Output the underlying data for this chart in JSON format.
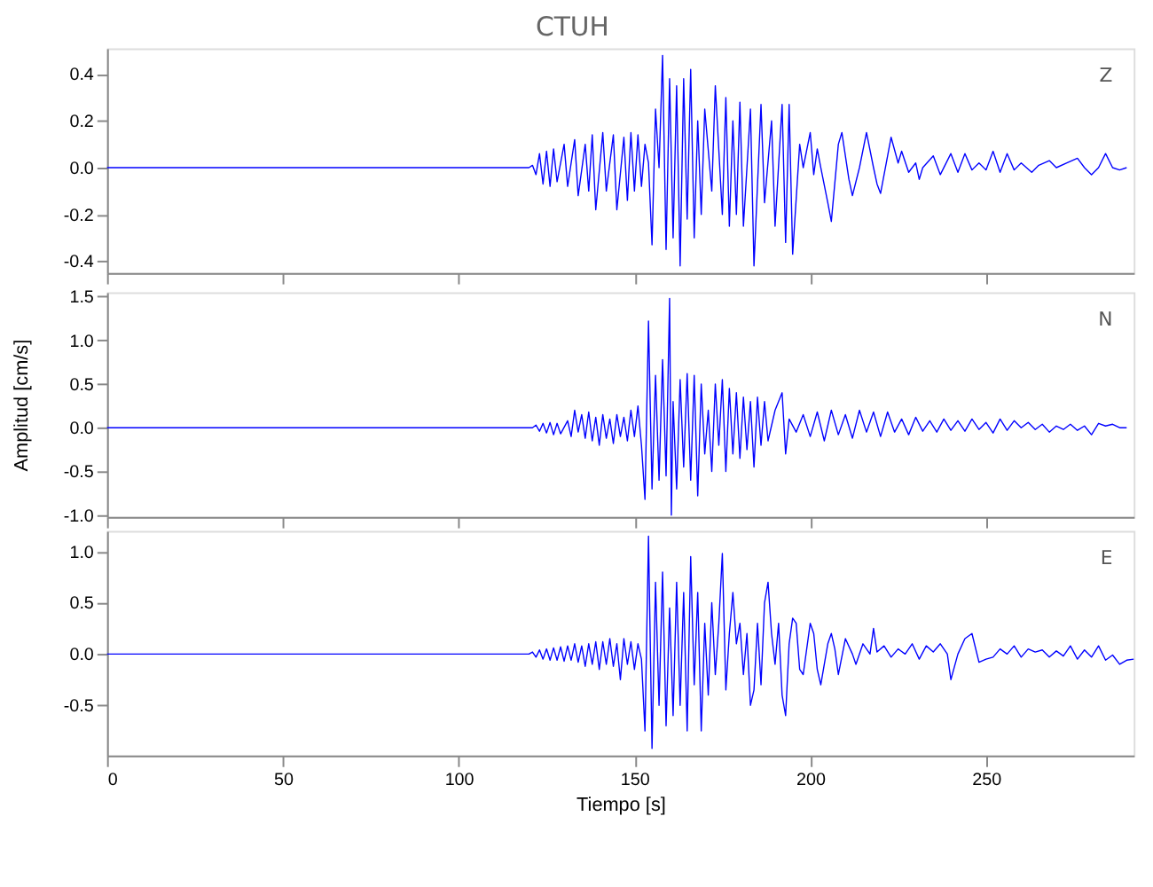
{
  "chart_data": [
    {
      "type": "line",
      "title": "CTUH",
      "annotations": [
        "Z"
      ],
      "xlim": [
        0,
        292
      ],
      "xticks": [
        0,
        50,
        100,
        150,
        200,
        250
      ],
      "ylim": [
        -0.45,
        0.51
      ],
      "yticks": [
        {
          "value": -0.4,
          "label": "-0.4"
        },
        {
          "value": -0.2,
          "label": "-0.2"
        },
        {
          "value": 0,
          "label": "0.0"
        },
        {
          "value": 0.2,
          "label": "0.2"
        },
        {
          "value": 0.4,
          "label": "0.4"
        }
      ],
      "tick_labels": "y",
      "x": [
        0,
        120,
        121,
        122,
        123,
        124,
        125,
        126,
        127,
        128,
        130,
        131,
        133,
        134,
        136,
        137,
        138,
        139,
        141,
        142,
        144,
        145,
        147,
        148,
        149,
        150,
        151,
        152,
        153,
        154,
        155,
        156,
        157,
        158,
        159,
        160,
        161,
        162,
        163,
        164,
        165,
        166,
        167,
        168,
        169,
        170,
        172,
        173,
        175,
        176,
        177,
        178,
        179,
        180,
        181,
        183,
        184,
        186,
        187,
        189,
        190,
        192,
        193,
        194,
        195,
        197,
        198,
        200,
        201,
        202,
        203,
        205,
        206,
        208,
        209,
        211,
        212,
        214,
        216,
        218,
        219,
        220,
        222,
        223,
        225,
        226,
        228,
        230,
        231,
        232,
        235,
        237,
        240,
        242,
        244,
        246,
        248,
        250,
        252,
        254,
        256,
        258,
        260,
        263,
        265,
        268,
        270,
        273,
        276,
        278,
        280,
        282,
        284,
        286,
        288,
        290
      ],
      "series": [
        {
          "color": "#0000ff",
          "values": [
            0,
            0,
            0.01,
            -0.03,
            0.06,
            -0.07,
            0.07,
            -0.08,
            0.08,
            -0.06,
            0.1,
            -0.08,
            0.12,
            -0.12,
            0.1,
            -0.1,
            0.14,
            -0.18,
            0.15,
            -0.1,
            0.14,
            -0.18,
            0.13,
            -0.14,
            0.15,
            -0.1,
            0.14,
            -0.08,
            0.1,
            0.02,
            -0.33,
            0.25,
            0.0,
            0.48,
            -0.35,
            0.38,
            -0.3,
            0.35,
            -0.42,
            0.38,
            -0.22,
            0.42,
            -0.3,
            0.2,
            -0.2,
            0.25,
            -0.1,
            0.35,
            -0.2,
            0.3,
            -0.25,
            0.2,
            -0.2,
            0.28,
            -0.25,
            0.25,
            -0.42,
            0.27,
            -0.15,
            0.2,
            -0.25,
            0.27,
            -0.32,
            0.27,
            -0.37,
            0.1,
            0.0,
            0.15,
            -0.03,
            0.08,
            0.0,
            -0.15,
            -0.23,
            0.1,
            0.15,
            -0.05,
            -0.12,
            0.0,
            0.15,
            0.0,
            -0.07,
            -0.11,
            0.05,
            0.13,
            0.02,
            0.07,
            -0.02,
            0.02,
            -0.05,
            0.0,
            0.05,
            -0.03,
            0.06,
            -0.02,
            0.06,
            -0.01,
            0.02,
            -0.01,
            0.07,
            -0.02,
            0.06,
            -0.01,
            0.02,
            -0.02,
            0.01,
            0.03,
            0.0,
            0.02,
            0.04,
            0.0,
            -0.03,
            0.0,
            0.06,
            0.0,
            -0.01,
            0.0
          ]
        }
      ]
    },
    {
      "type": "line",
      "ylabel": "Amplitud [cm/s]",
      "annotations": [
        "N"
      ],
      "xlim": [
        0,
        292
      ],
      "xticks": [
        0,
        50,
        100,
        150,
        200,
        250
      ],
      "ylim": [
        -1.02,
        1.55
      ],
      "yticks": [
        {
          "value": -1,
          "label": "-1.0"
        },
        {
          "value": -0.5,
          "label": "-0.5"
        },
        {
          "value": 0,
          "label": "0.0"
        },
        {
          "value": 0.5,
          "label": "0.5"
        },
        {
          "value": 1,
          "label": "1.0"
        },
        {
          "value": 1.5,
          "label": "1.5"
        }
      ],
      "tick_labels": "y",
      "x": [
        0,
        121,
        122,
        123,
        124,
        125,
        126,
        127,
        128,
        129,
        131,
        132,
        133,
        134,
        135,
        136,
        137,
        138,
        139,
        140,
        141,
        142,
        143,
        144,
        145,
        146,
        147,
        148,
        149,
        150,
        151,
        152,
        153,
        154,
        155,
        156,
        157,
        158,
        159,
        160,
        160.5,
        161,
        162,
        163,
        164,
        165,
        166,
        167,
        168,
        169,
        170,
        171,
        172,
        173,
        174,
        175,
        176,
        177,
        178,
        179,
        180,
        181,
        182,
        183,
        184,
        185,
        186,
        187,
        188,
        190,
        192,
        193,
        194,
        196,
        198,
        200,
        202,
        204,
        206,
        208,
        210,
        212,
        214,
        216,
        218,
        220,
        222,
        224,
        226,
        228,
        230,
        232,
        234,
        236,
        238,
        240,
        242,
        244,
        246,
        248,
        250,
        252,
        254,
        256,
        258,
        260,
        262,
        264,
        266,
        268,
        270,
        272,
        274,
        276,
        278,
        280,
        282,
        284,
        286,
        288,
        290
      ],
      "series": [
        {
          "color": "#0000ff",
          "values": [
            0,
            0,
            0.03,
            -0.04,
            0.05,
            -0.06,
            0.06,
            -0.08,
            0.05,
            -0.07,
            0.08,
            -0.1,
            0.2,
            -0.05,
            0.15,
            -0.12,
            0.18,
            -0.15,
            0.12,
            -0.2,
            0.15,
            -0.12,
            0.1,
            -0.18,
            0.15,
            -0.1,
            0.12,
            -0.15,
            0.2,
            -0.1,
            0.25,
            -0.2,
            -0.82,
            1.22,
            -0.7,
            0.6,
            -0.6,
            0.78,
            -0.55,
            1.48,
            -1.0,
            0.3,
            -0.7,
            0.55,
            -0.45,
            0.62,
            -0.6,
            0.6,
            -0.78,
            0.5,
            -0.3,
            0.2,
            -0.5,
            0.5,
            -0.2,
            0.55,
            -0.5,
            0.45,
            -0.3,
            0.4,
            -0.35,
            0.35,
            -0.25,
            0.3,
            -0.45,
            0.35,
            -0.2,
            0.3,
            -0.15,
            0.2,
            0.4,
            -0.3,
            0.1,
            -0.05,
            0.15,
            -0.1,
            0.18,
            -0.15,
            0.2,
            -0.08,
            0.15,
            -0.12,
            0.2,
            -0.05,
            0.18,
            -0.1,
            0.18,
            -0.05,
            0.1,
            -0.08,
            0.12,
            -0.04,
            0.08,
            -0.05,
            0.1,
            -0.03,
            0.08,
            -0.04,
            0.1,
            -0.02,
            0.06,
            -0.06,
            0.1,
            -0.03,
            0.08,
            0.0,
            0.06,
            -0.02,
            0.04,
            -0.05,
            0.02,
            -0.02,
            0.04,
            -0.03,
            0.02,
            -0.08,
            0.05,
            0.02,
            0.04,
            0.0,
            0.0
          ]
        }
      ]
    },
    {
      "type": "line",
      "xlabel": "Tiempo [s]",
      "annotations": [
        "E"
      ],
      "xlim": [
        0,
        292
      ],
      "xticks": [
        0,
        50,
        100,
        150,
        200,
        250
      ],
      "ylim": [
        -0.99,
        1.2
      ],
      "yticks": [
        {
          "value": -0.5,
          "label": "-0.5"
        },
        {
          "value": 0,
          "label": "0.0"
        },
        {
          "value": 0.5,
          "label": "0.5"
        },
        {
          "value": 1,
          "label": "1.0"
        }
      ],
      "x": [
        0,
        120,
        121,
        122,
        123,
        124,
        125,
        126,
        127,
        128,
        129,
        130,
        131,
        132,
        133,
        134,
        135,
        136,
        137,
        138,
        139,
        140,
        141,
        142,
        143,
        144,
        145,
        146,
        147,
        148,
        149,
        150,
        151,
        152,
        153,
        154,
        155,
        156,
        157,
        158,
        159,
        160,
        161,
        162,
        163,
        164,
        165,
        166,
        167,
        168,
        169,
        170,
        171,
        172,
        173,
        174,
        175,
        176,
        177,
        178,
        179,
        180,
        181,
        182,
        183,
        184,
        185,
        186,
        187,
        188,
        189,
        190,
        191,
        192,
        193,
        194,
        195,
        196,
        197,
        198,
        200,
        201,
        202,
        203,
        205,
        206,
        207,
        208,
        210,
        212,
        213,
        215,
        217,
        218,
        219,
        221,
        223,
        225,
        227,
        229,
        231,
        233,
        235,
        237,
        239,
        240,
        242,
        244,
        246,
        248,
        250,
        252,
        254,
        256,
        258,
        260,
        262,
        264,
        266,
        268,
        270,
        272,
        274,
        276,
        278,
        280,
        282,
        284,
        286,
        288,
        290,
        292
      ],
      "series": [
        {
          "color": "#0000ff",
          "values": [
            0,
            0,
            0.02,
            -0.03,
            0.04,
            -0.05,
            0.05,
            -0.06,
            0.06,
            -0.06,
            0.07,
            -0.07,
            0.08,
            -0.06,
            0.1,
            -0.08,
            0.08,
            -0.12,
            0.1,
            -0.1,
            0.12,
            -0.15,
            0.12,
            -0.1,
            0.15,
            -0.12,
            0.1,
            -0.25,
            0.15,
            -0.1,
            0.12,
            -0.15,
            0.1,
            -0.05,
            -0.75,
            1.15,
            -0.92,
            0.7,
            -0.5,
            0.8,
            -0.7,
            0.45,
            -0.6,
            0.7,
            -0.5,
            0.6,
            -0.75,
            0.95,
            -0.3,
            0.6,
            -0.75,
            0.3,
            -0.4,
            0.5,
            -0.2,
            0.3,
            0.98,
            -0.35,
            0.2,
            0.6,
            0.1,
            0.3,
            -0.2,
            0.2,
            -0.5,
            -0.35,
            0.3,
            -0.3,
            0.5,
            0.7,
            0.2,
            -0.1,
            0.3,
            -0.4,
            -0.6,
            0.1,
            0.35,
            0.3,
            -0.15,
            -0.2,
            0.3,
            0.2,
            -0.15,
            -0.3,
            0.1,
            0.2,
            0.05,
            -0.2,
            0.15,
            0.0,
            -0.1,
            0.1,
            0.0,
            0.25,
            0.02,
            0.08,
            -0.03,
            0.05,
            0.0,
            0.1,
            -0.05,
            0.08,
            0.02,
            0.1,
            0.0,
            -0.25,
            0.0,
            0.15,
            0.2,
            -0.08,
            -0.05,
            -0.03,
            0.05,
            0.0,
            0.08,
            -0.03,
            0.05,
            0.02,
            0.04,
            -0.03,
            0.03,
            -0.02,
            0.08,
            -0.05,
            0.04,
            -0.03,
            0.08,
            -0.06,
            -0.01,
            -0.1,
            -0.06,
            -0.05
          ]
        }
      ]
    }
  ]
}
